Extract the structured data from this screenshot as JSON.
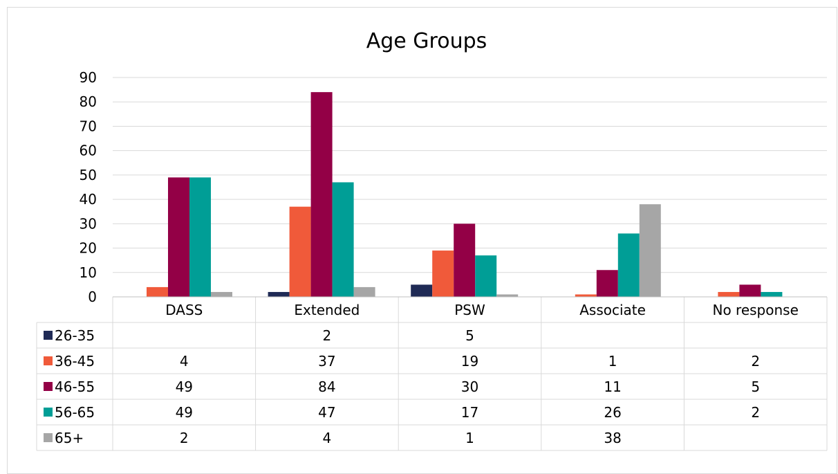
{
  "chart_data": {
    "type": "bar",
    "title": "Age Groups",
    "categories": [
      "DASS",
      "Extended",
      "PSW",
      "Associate",
      "No response"
    ],
    "series": [
      {
        "name": "26-35",
        "color": "#1f2a55",
        "values": [
          null,
          2,
          5,
          null,
          null
        ]
      },
      {
        "name": "36-45",
        "color": "#f05a3a",
        "values": [
          4,
          37,
          19,
          1,
          2
        ]
      },
      {
        "name": "46-55",
        "color": "#930046",
        "values": [
          49,
          84,
          30,
          11,
          5
        ]
      },
      {
        "name": "56-65",
        "color": "#009e96",
        "values": [
          49,
          47,
          17,
          26,
          2
        ]
      },
      {
        "name": "65+",
        "color": "#a6a6a6",
        "values": [
          2,
          4,
          1,
          38,
          null
        ]
      }
    ],
    "ylim": [
      0,
      90
    ],
    "yticks": [
      0,
      10,
      20,
      30,
      40,
      50,
      60,
      70,
      80,
      90
    ],
    "grid": true,
    "legend": "data-table"
  }
}
